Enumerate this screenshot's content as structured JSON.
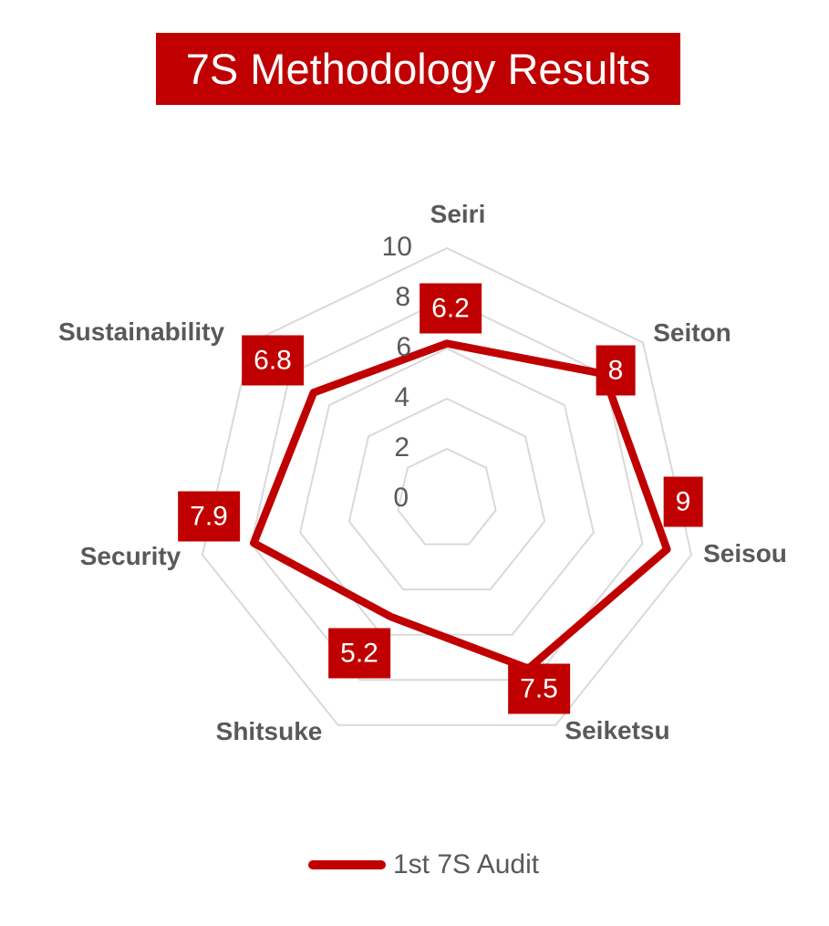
{
  "title": {
    "text": "7S Methodology Results",
    "banner_color": "#C00000",
    "text_color": "#FFFFFF"
  },
  "chart_data": {
    "type": "radar",
    "categories": [
      "Seiri",
      "Seiton",
      "Seisou",
      "Seiketsu",
      "Shitsuke",
      "Security",
      "Sustainability"
    ],
    "series": [
      {
        "name": "1st 7S Audit",
        "values": [
          6.2,
          8,
          9,
          7.5,
          5.2,
          7.9,
          6.8
        ],
        "color": "#C00000",
        "line_width": 8.5
      }
    ],
    "axis": {
      "min": 0,
      "max": 10,
      "tick_interval": 2,
      "ticks": [
        10,
        8,
        6,
        4,
        2,
        0
      ]
    },
    "grid": "concentric-heptagons",
    "gridline_color": "#D9D9D9",
    "label_color": "#595959",
    "data_label_bg": "#C00000",
    "data_label_text_color": "#FFFFFF",
    "legend": {
      "position": "bottom",
      "entries": [
        {
          "label": "1st 7S Audit",
          "color": "#C00000"
        }
      ]
    }
  }
}
